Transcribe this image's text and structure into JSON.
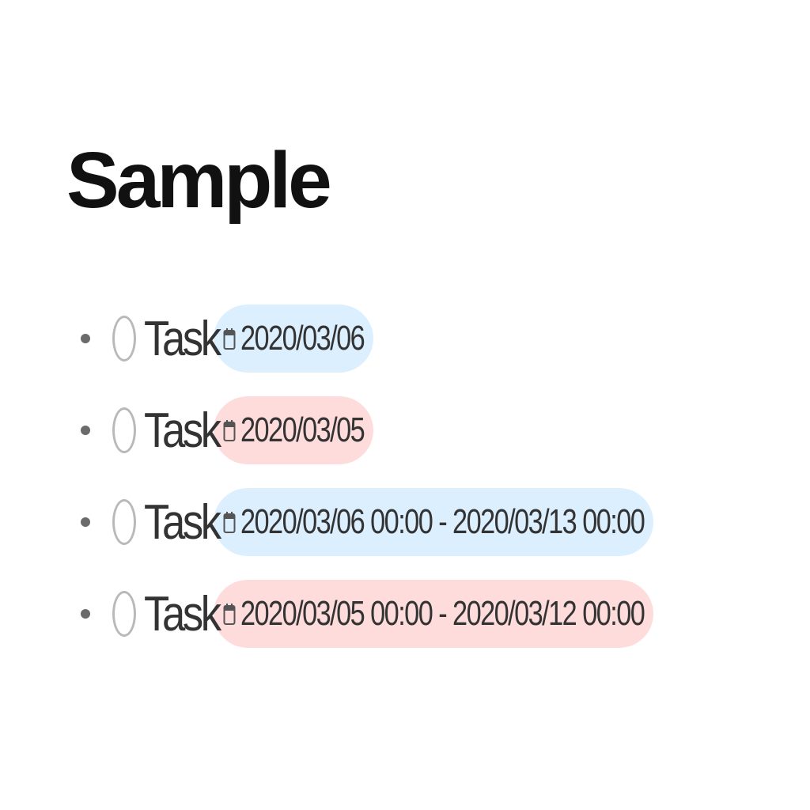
{
  "page": {
    "title": "Sample"
  },
  "tasks": [
    {
      "label": "Task",
      "due": "2020/03/06",
      "status": "upcoming"
    },
    {
      "label": "Task",
      "due": "2020/03/05",
      "status": "overdue"
    },
    {
      "label": "Task",
      "due": "2020/03/06 00:00 - 2020/03/13 00:00",
      "status": "upcoming"
    },
    {
      "label": "Task",
      "due": "2020/03/05 00:00 - 2020/03/12 00:00",
      "status": "overdue"
    }
  ],
  "icons": {
    "checkbox": "circle-checkbox-icon",
    "due": "calendar-icon"
  },
  "colors": {
    "upcoming_chip": "#dcefff",
    "overdue_chip": "#ffdcdc"
  }
}
